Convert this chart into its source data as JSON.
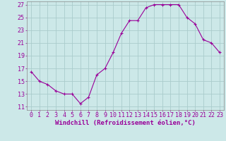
{
  "x": [
    0,
    1,
    2,
    3,
    4,
    5,
    6,
    7,
    8,
    9,
    10,
    11,
    12,
    13,
    14,
    15,
    16,
    17,
    18,
    19,
    20,
    21,
    22,
    23
  ],
  "y": [
    16.5,
    15.0,
    14.5,
    13.5,
    13.0,
    13.0,
    11.5,
    12.5,
    16.0,
    17.0,
    19.5,
    22.5,
    24.5,
    24.5,
    26.5,
    27.0,
    27.0,
    27.0,
    27.0,
    25.0,
    24.0,
    21.5,
    21.0,
    19.5
  ],
  "line_color": "#990099",
  "marker": "+",
  "bg_color": "#cce8e8",
  "grid_color": "#aacccc",
  "ylabel_ticks": [
    11,
    13,
    15,
    17,
    19,
    21,
    23,
    25,
    27
  ],
  "xlim": [
    -0.5,
    23.5
  ],
  "ylim": [
    10.5,
    27.5
  ],
  "xticks": [
    0,
    1,
    2,
    3,
    4,
    5,
    6,
    7,
    8,
    9,
    10,
    11,
    12,
    13,
    14,
    15,
    16,
    17,
    18,
    19,
    20,
    21,
    22,
    23
  ],
  "tick_color": "#990099",
  "xlabel": "Windchill (Refroidissement éolien,°C)",
  "xlabel_fontsize": 6.5,
  "tick_fontsize": 6.0,
  "spine_color": "#888888",
  "line_width": 0.8,
  "marker_size": 3.0
}
